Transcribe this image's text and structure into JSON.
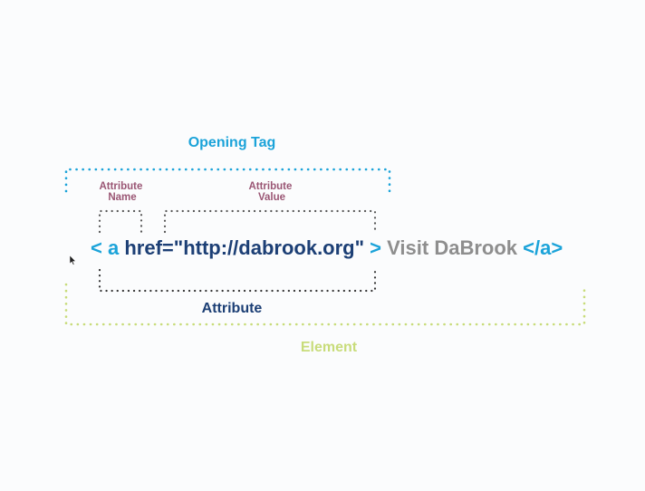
{
  "labels": {
    "opening_tag": "Opening Tag",
    "attribute_name_line1": "Attribute",
    "attribute_name_line2": "Name",
    "attribute_value_line1": "Attribute",
    "attribute_value_line2": "Value",
    "attribute": "Attribute",
    "element": "Element"
  },
  "code": {
    "open_bracket": "<",
    "tag_name": "a",
    "attr_assignment": " href=\"http://dabrook.org\"",
    "close_bracket": ">",
    "content": "Visit DaBrook",
    "closing_tag": "</a>"
  },
  "colors": {
    "tag_blue": "#1ba3d9",
    "dark_blue": "#1c3f75",
    "content_gray": "#8e8e8e",
    "maroon": "#9a5674",
    "element_green": "#c8dc7a",
    "dotted_gray": "#555555"
  }
}
